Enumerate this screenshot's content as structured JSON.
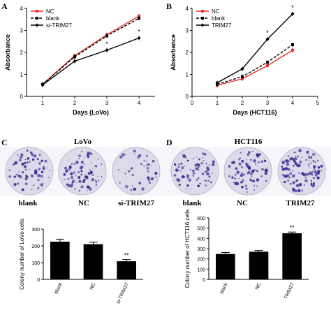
{
  "panels": {
    "A": "A",
    "B": "B",
    "C": "C",
    "D": "D"
  },
  "colors": {
    "red": "#e8322c",
    "black": "#000000",
    "bar": "#000000",
    "stain": "#3b2a95",
    "dish": "#dcdbe9"
  },
  "chart_data": [
    {
      "type": "line",
      "panel": "A",
      "xlabel": "Days (LoVo)",
      "ylabel": "Absorbance",
      "x": [
        1,
        2,
        3,
        4
      ],
      "xlim": [
        0.5,
        4.5
      ],
      "ylim": [
        0,
        4
      ],
      "xticks": [
        "1",
        "2",
        "3",
        "4"
      ],
      "yticks": [
        "0",
        "1",
        "2",
        "3",
        "4"
      ],
      "legend": "top-left",
      "series": [
        {
          "name": "NC",
          "values": [
            0.55,
            1.85,
            2.8,
            3.65
          ],
          "color": "#e8322c",
          "dash": "solid"
        },
        {
          "name": "blank",
          "values": [
            0.55,
            1.8,
            2.75,
            3.55
          ],
          "color": "#000000",
          "dash": "dashed"
        },
        {
          "name": "si-TRIM27",
          "values": [
            0.52,
            1.6,
            2.1,
            2.65
          ],
          "color": "#000000",
          "dash": "solid"
        }
      ],
      "annotations": [
        {
          "x": 3,
          "y": 2.1,
          "text": "*"
        },
        {
          "x": 4,
          "y": 2.65,
          "text": "*"
        }
      ]
    },
    {
      "type": "line",
      "panel": "B",
      "xlabel": "Days (HCT116)",
      "ylabel": "Absorbance",
      "x": [
        1,
        2,
        3,
        4
      ],
      "xlim": [
        0,
        5
      ],
      "ylim": [
        0,
        4
      ],
      "xticks": [
        "0",
        "1",
        "2",
        "3",
        "4",
        "5"
      ],
      "yticks": [
        "0",
        "1",
        "2",
        "3",
        "4"
      ],
      "legend": "top-left",
      "series": [
        {
          "name": "NC",
          "values": [
            0.5,
            0.8,
            1.4,
            2.1
          ],
          "color": "#e8322c",
          "dash": "solid"
        },
        {
          "name": "blank",
          "values": [
            0.55,
            0.9,
            1.55,
            2.35
          ],
          "color": "#000000",
          "dash": "dashed"
        },
        {
          "name": "TRIM27",
          "values": [
            0.62,
            1.25,
            2.6,
            3.75
          ],
          "color": "#000000",
          "dash": "solid"
        }
      ],
      "annotations": [
        {
          "x": 3,
          "y": 2.6,
          "text": "*"
        },
        {
          "x": 4,
          "y": 3.75,
          "text": "*"
        }
      ]
    },
    {
      "type": "bar",
      "panel": "C",
      "ylabel": "Colony number of LoVo cells",
      "categories": [
        "blank",
        "NC",
        "si-TRIM27"
      ],
      "values": [
        225,
        210,
        108
      ],
      "errors": [
        15,
        12,
        10
      ],
      "ylim": [
        0,
        300
      ],
      "yticks": [
        "0",
        "100",
        "200",
        "300"
      ],
      "annotations": [
        {
          "category": "si-TRIM27",
          "text": "**"
        }
      ]
    },
    {
      "type": "bar",
      "panel": "D",
      "ylabel": "Colony number of HCT116 cells",
      "categories": [
        "blank",
        "NC",
        "TRIM27"
      ],
      "values": [
        248,
        270,
        450
      ],
      "errors": [
        15,
        12,
        12
      ],
      "ylim": [
        0,
        600
      ],
      "yticks": [
        "0",
        "100",
        "200",
        "300",
        "400",
        "500",
        "600"
      ],
      "annotations": [
        {
          "category": "TRIM27",
          "text": "**"
        }
      ]
    }
  ],
  "photos": {
    "C": {
      "title": "LoVo",
      "labels": [
        "blank",
        "NC",
        "si-TRIM27"
      ],
      "density": [
        1.0,
        1.1,
        0.55
      ]
    },
    "D": {
      "title": "HCT116",
      "labels": [
        "blank",
        "NC",
        "TRIM27"
      ],
      "density": [
        1.0,
        1.1,
        1.6
      ]
    }
  }
}
